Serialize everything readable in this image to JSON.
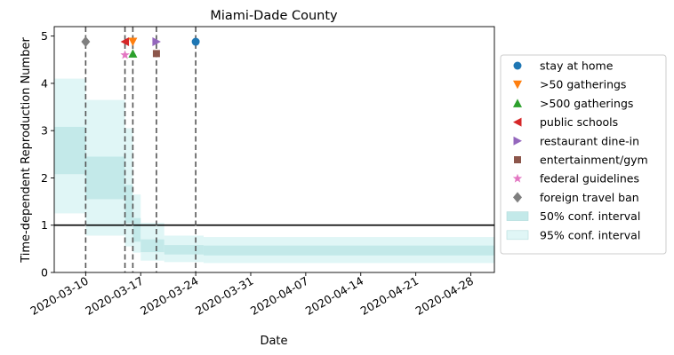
{
  "chart_data": {
    "type": "line",
    "title": "Miami-Dade County",
    "xlabel": "Date",
    "ylabel": "Time-dependent Reproduction Number",
    "xlim": [
      "2020-03-06",
      "2020-05-01"
    ],
    "ylim": [
      0,
      5.2
    ],
    "x_ticks": [
      "2020-03-10",
      "2020-03-17",
      "2020-03-24",
      "2020-03-31",
      "2020-04-07",
      "2020-04-14",
      "2020-04-21",
      "2020-04-28"
    ],
    "y_ticks": [
      0,
      1,
      2,
      3,
      4,
      5
    ],
    "grid": false,
    "legend_position": "right",
    "reference_line": 1,
    "intervals": [
      {
        "start": "2020-03-06",
        "end": "2020-03-10",
        "ci50": [
          2.08,
          3.08
        ],
        "ci95": [
          1.25,
          4.1
        ]
      },
      {
        "start": "2020-03-10",
        "end": "2020-03-15",
        "ci50": [
          1.55,
          2.45
        ],
        "ci95": [
          0.78,
          3.65
        ]
      },
      {
        "start": "2020-03-15",
        "end": "2020-03-16",
        "ci50": [
          1.05,
          1.85
        ],
        "ci95": [
          0.55,
          3.05
        ]
      },
      {
        "start": "2020-03-16",
        "end": "2020-03-17",
        "ci50": [
          0.65,
          1.15
        ],
        "ci95": [
          0.42,
          1.65
        ]
      },
      {
        "start": "2020-03-17",
        "end": "2020-03-20",
        "ci50": [
          0.43,
          0.7
        ],
        "ci95": [
          0.25,
          1.05
        ]
      },
      {
        "start": "2020-03-20",
        "end": "2020-03-25",
        "ci50": [
          0.38,
          0.58
        ],
        "ci95": [
          0.22,
          0.78
        ]
      },
      {
        "start": "2020-03-25",
        "end": "2020-05-01",
        "ci50": [
          0.36,
          0.57
        ],
        "ci95": [
          0.2,
          0.75
        ]
      }
    ],
    "events": [
      {
        "label": "stay at home",
        "date": "2020-03-24",
        "y": 4.88,
        "marker": "circle",
        "color": "#1f77b4"
      },
      {
        "label": ">50 gatherings",
        "date": "2020-03-16",
        "y": 4.88,
        "marker": "triangle-down",
        "color": "#ff7f0e"
      },
      {
        "label": ">500 gatherings",
        "date": "2020-03-16",
        "y": 4.63,
        "marker": "triangle-up",
        "color": "#2ca02c"
      },
      {
        "label": "public schools",
        "date": "2020-03-15",
        "y": 4.88,
        "marker": "triangle-left",
        "color": "#d62728"
      },
      {
        "label": "restaurant dine-in",
        "date": "2020-03-19",
        "y": 4.88,
        "marker": "triangle-right",
        "color": "#9467bd"
      },
      {
        "label": "entertainment/gym",
        "date": "2020-03-19",
        "y": 4.63,
        "marker": "square",
        "color": "#8c564b"
      },
      {
        "label": "federal guidelines",
        "date": "2020-03-15",
        "y": 4.6,
        "marker": "star",
        "color": "#e377c2"
      },
      {
        "label": "foreign travel ban",
        "date": "2020-03-10",
        "y": 4.88,
        "marker": "diamond",
        "color": "#7f7f7f"
      }
    ],
    "vertical_lines": [
      "2020-03-10",
      "2020-03-15",
      "2020-03-16",
      "2020-03-19",
      "2020-03-24"
    ],
    "legend": [
      {
        "label": "stay at home",
        "marker": "circle",
        "color": "#1f77b4"
      },
      {
        "label": ">50 gatherings",
        "marker": "triangle-down",
        "color": "#ff7f0e"
      },
      {
        "label": ">500 gatherings",
        "marker": "triangle-up",
        "color": "#2ca02c"
      },
      {
        "label": "public schools",
        "marker": "triangle-left",
        "color": "#d62728"
      },
      {
        "label": "restaurant dine-in",
        "marker": "triangle-right",
        "color": "#9467bd"
      },
      {
        "label": "entertainment/gym",
        "marker": "square",
        "color": "#8c564b"
      },
      {
        "label": "federal guidelines",
        "marker": "star",
        "color": "#e377c2"
      },
      {
        "label": "foreign travel ban",
        "marker": "diamond",
        "color": "#7f7f7f"
      },
      {
        "label": "50% conf. interval",
        "marker": "patch",
        "color": "#c3e9e9"
      },
      {
        "label": "95% conf. interval",
        "marker": "patch",
        "color": "#e0f6f6"
      }
    ],
    "colors": {
      "ci50": "#c3e9e9",
      "ci95": "#e0f6f6",
      "reference_line": "#000000",
      "vertical_line": "#555555"
    }
  }
}
